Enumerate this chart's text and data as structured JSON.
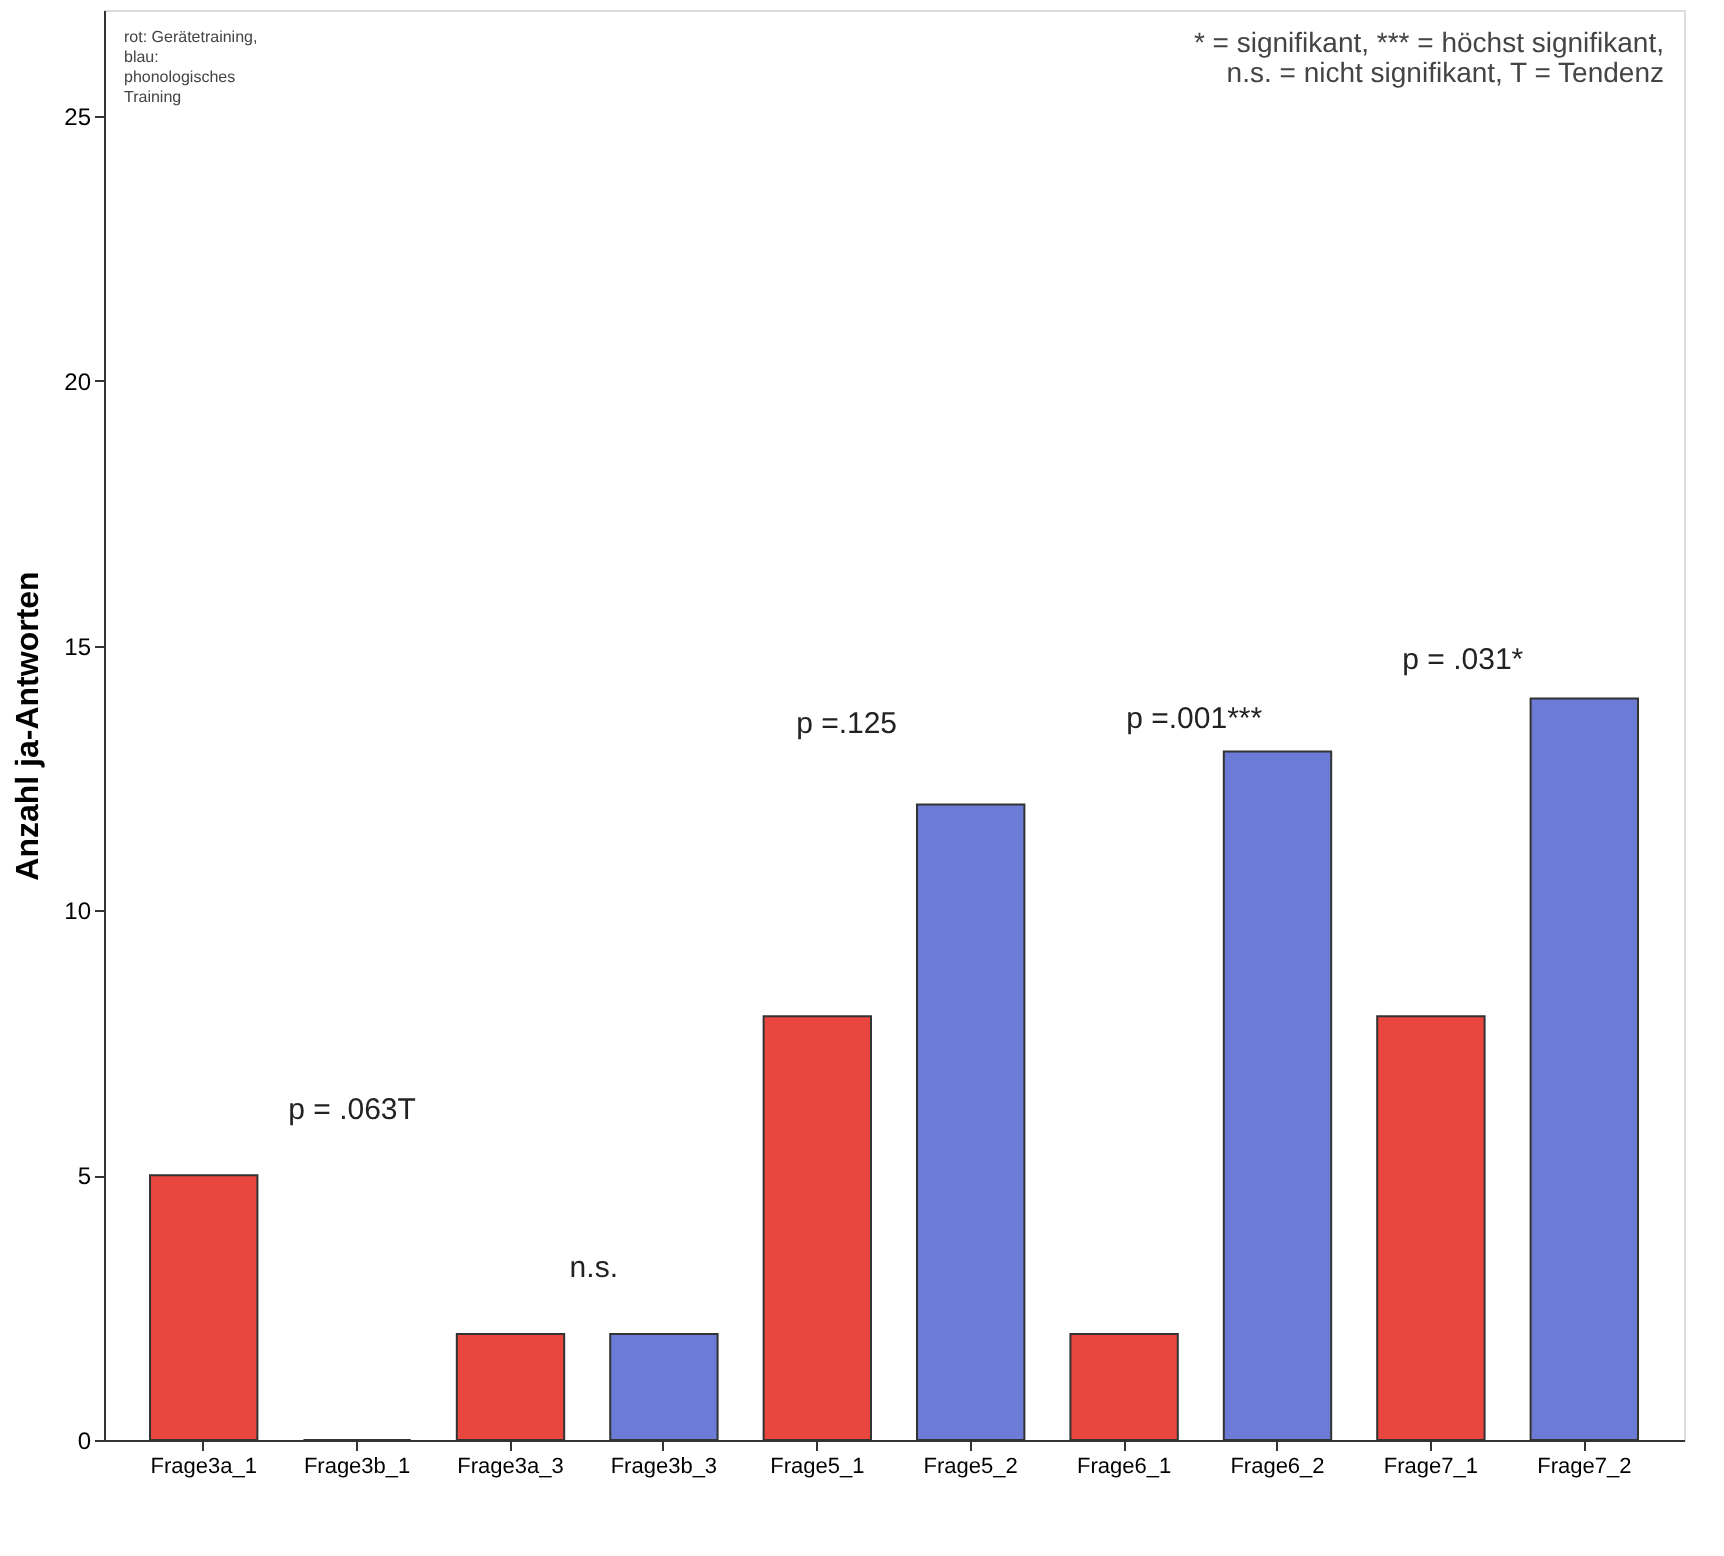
{
  "chart_data": {
    "type": "bar",
    "ylabel": "Anzahl ja-Antworten",
    "categories": [
      "Frage3a_1",
      "Frage3b_1",
      "Frage3a_3",
      "Frage3b_3",
      "Frage5_1",
      "Frage5_2",
      "Frage6_1",
      "Frage6_2",
      "Frage7_1",
      "Frage7_2"
    ],
    "values": [
      5,
      0,
      2,
      2,
      8,
      12,
      2,
      13,
      8,
      14
    ],
    "colors": [
      "#e8463e",
      "#6b7bd6",
      "#e8463e",
      "#6b7bd6",
      "#e8463e",
      "#6b7bd6",
      "#e8463e",
      "#6b7bd6",
      "#e8463e",
      "#6b7bd6"
    ],
    "ylim": [
      0,
      27
    ],
    "yticks": [
      0,
      5,
      10,
      15,
      20,
      25
    ],
    "grid": false,
    "annotations": [
      "rot: Gerätetraining,\nblau:\nphonologisches\nTraining",
      "* = signifikant, *** = höchst signifikant,\nn.s. = nicht signifikant, T = Tendenz",
      "p = .063T",
      "n.s.",
      "p =.125",
      "p =.001***",
      "p = .031*"
    ]
  }
}
